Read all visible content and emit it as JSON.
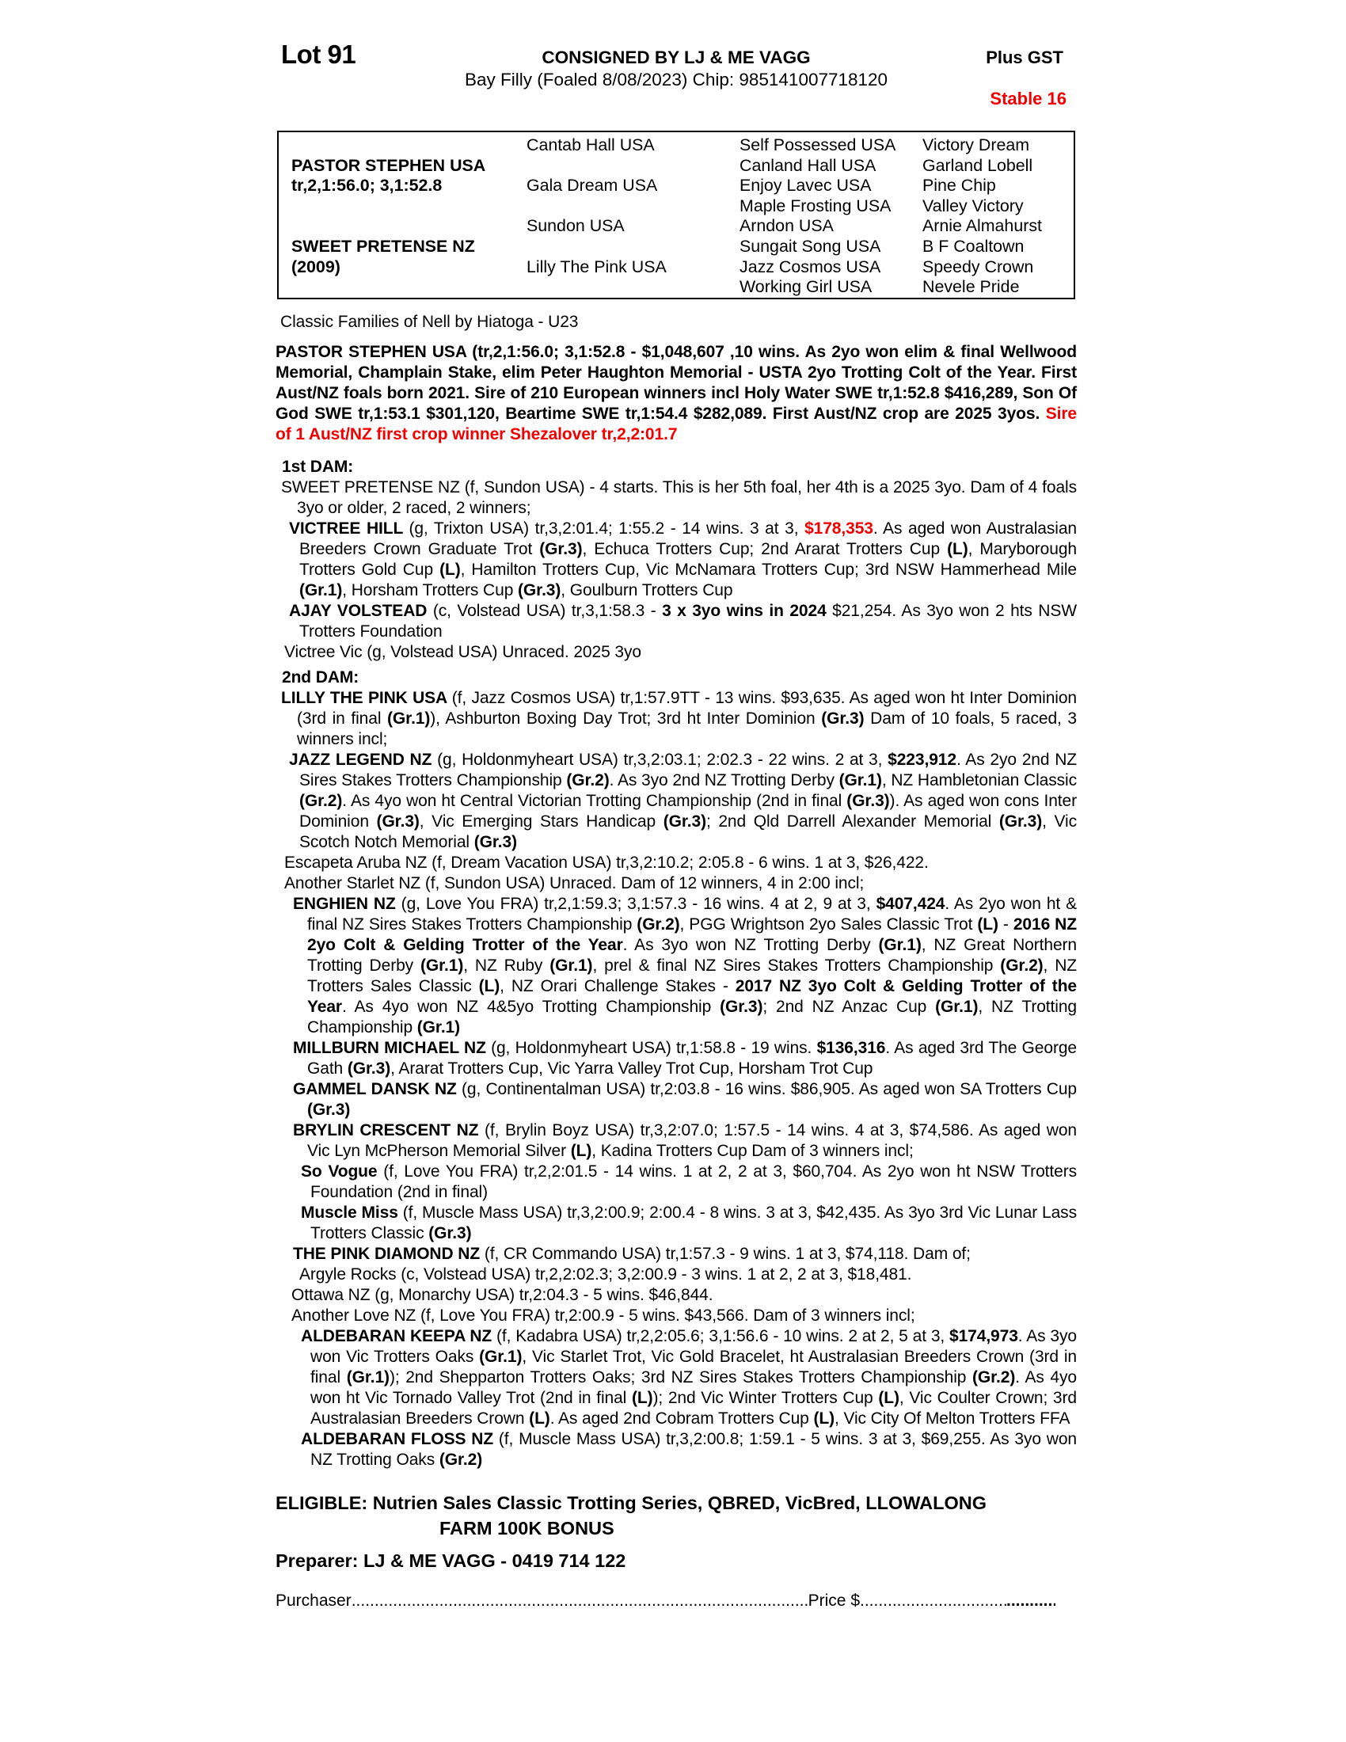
{
  "colors": {
    "accent_red": "#f20000",
    "text": "#000000",
    "page_background": "#ffffff"
  },
  "header": {
    "lot": "Lot 91",
    "consignor": "CONSIGNED BY LJ & ME VAGG",
    "description": "Bay Filly (Foaled 8/08/2023) Chip: 985141007718120",
    "gst": "Plus GST",
    "stable": "Stable 16"
  },
  "pedigree": {
    "sire": {
      "name": "PASTOR STEPHEN USA",
      "record": "tr,2,1:56.0; 3,1:52.8"
    },
    "dam": {
      "name": "SWEET PRETENSE NZ",
      "record": "(2009)"
    },
    "gen2": [
      "Cantab Hall USA",
      "Gala Dream USA",
      "Sundon USA",
      "Lilly The Pink USA"
    ],
    "gen3": [
      "Self Possessed USA",
      "Canland Hall USA",
      "Enjoy Lavec USA",
      "Maple Frosting USA",
      "Arndon USA",
      "Sungait Song USA",
      "Jazz Cosmos USA",
      "Working Girl USA"
    ],
    "gen4": [
      "Victory Dream",
      "Garland Lobell",
      "Pine Chip",
      "Valley Victory",
      "Arnie Almahurst",
      "B F Coaltown",
      "Speedy Crown",
      "Nevele Pride"
    ]
  },
  "body": [
    {
      "name": "family-line",
      "cls": "fam",
      "seg": [
        {
          "t": "Classic Families of Nell by Hiatoga - U23"
        }
      ]
    },
    {
      "name": "sire-summary",
      "cls": "sire",
      "seg": [
        {
          "t": "PASTOR STEPHEN USA (tr,2,1:56.0; 3,1:52.8 - $1,048,607 ,10 wins. As 2yo won elim & final Wellwood Memorial, Champlain Stake, elim Peter Haughton Memorial - USTA 2yo Trotting Colt of the Year. First Aust/NZ foals born 2021. Sire of 210 European winners incl Holy Water SWE tr,1:52.8 $416,289, Son Of God SWE tr,1:53.1 $301,120, Beartime SWE tr,1:54.4 $282,089. First Aust/NZ crop are 2025 3yos. ",
          "s": "b"
        },
        {
          "t": "Sire of 1 Aust/NZ first crop winner Shezalover tr,2,2:01.7",
          "s": "r"
        }
      ]
    },
    {
      "name": "first-dam-heading",
      "cls": "head",
      "seg": [
        {
          "t": "1st DAM:",
          "s": "b"
        }
      ]
    },
    {
      "name": "entry-sweet-pretense",
      "cls": "dam",
      "seg": [
        {
          "t": "SWEET PRETENSE NZ (f, Sundon USA) - 4 starts. This is her 5th foal, her 4th is a 2025 3yo. Dam of 4 foals 3yo or older, 2 raced, 2 winners;"
        }
      ]
    },
    {
      "name": "entry-victree-hill",
      "cls": "c1",
      "seg": [
        {
          "t": "VICTREE HILL ",
          "s": "b"
        },
        {
          "t": "(g, Trixton USA) tr,3,2:01.4; 1:55.2 - 14 wins. 3 at 3, "
        },
        {
          "t": "$178,353",
          "s": "r"
        },
        {
          "t": ". As aged won Australasian Breeders Crown Graduate Trot "
        },
        {
          "t": "(Gr.3)",
          "s": "b"
        },
        {
          "t": ", Echuca Trotters Cup; 2nd Ararat Trotters Cup "
        },
        {
          "t": "(L)",
          "s": "b"
        },
        {
          "t": ", Maryborough Trotters Gold Cup "
        },
        {
          "t": "(L)",
          "s": "b"
        },
        {
          "t": ", Hamilton Trotters Cup, Vic McNamara Trotters Cup; 3rd NSW Hammerhead Mile "
        },
        {
          "t": "(Gr.1)",
          "s": "b"
        },
        {
          "t": ", Horsham Trotters Cup "
        },
        {
          "t": "(Gr.3)",
          "s": "b"
        },
        {
          "t": ", Goulburn Trotters Cup"
        }
      ]
    },
    {
      "name": "entry-ajay-volstead",
      "cls": "c1",
      "seg": [
        {
          "t": "AJAY VOLSTEAD ",
          "s": "b"
        },
        {
          "t": "(c, Volstead USA) tr,3,1:58.3 - "
        },
        {
          "t": "3 x 3yo wins in 2024",
          "s": "b"
        },
        {
          "t": " $21,254. As 3yo won 2 hts NSW Trotters Foundation"
        }
      ]
    },
    {
      "name": "entry-victree-vic",
      "cls": "p1",
      "seg": [
        {
          "t": "Victree Vic (g, Volstead USA) Unraced. 2025 3yo"
        }
      ]
    },
    {
      "name": "second-dam-heading",
      "cls": "head tight",
      "seg": [
        {
          "t": "2nd DAM:",
          "s": "b"
        }
      ]
    },
    {
      "name": "entry-lilly-the-pink",
      "cls": "dam",
      "seg": [
        {
          "t": "LILLY THE PINK USA ",
          "s": "b"
        },
        {
          "t": "(f, Jazz Cosmos USA) tr,1:57.9TT - 13 wins. $93,635. As aged won ht Inter Dominion (3rd in final "
        },
        {
          "t": "(Gr.1)",
          "s": "b"
        },
        {
          "t": "), Ashburton Boxing Day Trot; 3rd ht Inter Dominion "
        },
        {
          "t": "(Gr.3)",
          "s": "b"
        },
        {
          "t": " Dam of 10 foals, 5 raced, 3 winners incl;"
        }
      ]
    },
    {
      "name": "entry-jazz-legend",
      "cls": "c1",
      "seg": [
        {
          "t": "JAZZ LEGEND NZ ",
          "s": "b"
        },
        {
          "t": "(g, Holdonmyheart USA) tr,3,2:03.1; 2:02.3 - 22 wins. 2 at 3, "
        },
        {
          "t": "$223,912",
          "s": "b"
        },
        {
          "t": ". As 2yo 2nd NZ Sires Stakes Trotters Championship "
        },
        {
          "t": "(Gr.2)",
          "s": "b"
        },
        {
          "t": ". As 3yo 2nd NZ Trotting Derby "
        },
        {
          "t": "(Gr.1)",
          "s": "b"
        },
        {
          "t": ", NZ Hambletonian Classic "
        },
        {
          "t": "(Gr.2)",
          "s": "b"
        },
        {
          "t": ". As 4yo won ht Central Victorian Trotting Championship (2nd in final "
        },
        {
          "t": "(Gr.3)",
          "s": "b"
        },
        {
          "t": "). As aged won cons Inter Dominion "
        },
        {
          "t": "(Gr.3)",
          "s": "b"
        },
        {
          "t": ", Vic Emerging Stars Handicap "
        },
        {
          "t": "(Gr.3)",
          "s": "b"
        },
        {
          "t": "; 2nd Qld Darrell Alexander Memorial "
        },
        {
          "t": "(Gr.3)",
          "s": "b"
        },
        {
          "t": ", Vic Scotch Notch Memorial "
        },
        {
          "t": "(Gr.3)",
          "s": "b"
        }
      ]
    },
    {
      "name": "entry-escapeta-aruba",
      "cls": "p1",
      "seg": [
        {
          "t": "Escapeta Aruba NZ (f, Dream Vacation USA) tr,3,2:10.2; 2:05.8 - 6 wins. 1 at 3, $26,422."
        }
      ]
    },
    {
      "name": "entry-another-starlet",
      "cls": "p1",
      "seg": [
        {
          "t": "Another Starlet NZ (f, Sundon USA) Unraced. Dam of 12 winners, 4 in 2:00 incl;"
        }
      ]
    },
    {
      "name": "entry-enghien",
      "cls": "c2",
      "seg": [
        {
          "t": "ENGHIEN NZ ",
          "s": "b"
        },
        {
          "t": "(g, Love You FRA) tr,2,1:59.3; 3,1:57.3 - 16 wins. 4 at 2, 9 at 3, "
        },
        {
          "t": "$407,424",
          "s": "b"
        },
        {
          "t": ". As 2yo won ht & final NZ Sires Stakes Trotters Championship "
        },
        {
          "t": "(Gr.2)",
          "s": "b"
        },
        {
          "t": ", PGG Wrightson 2yo Sales Classic Trot "
        },
        {
          "t": "(L)",
          "s": "b"
        },
        {
          "t": " - "
        },
        {
          "t": "2016 NZ 2yo Colt & Gelding Trotter of the Year",
          "s": "b"
        },
        {
          "t": ". As 3yo won NZ Trotting Derby "
        },
        {
          "t": "(Gr.1)",
          "s": "b"
        },
        {
          "t": ", NZ Great Northern Trotting Derby "
        },
        {
          "t": "(Gr.1)",
          "s": "b"
        },
        {
          "t": ", NZ Ruby "
        },
        {
          "t": "(Gr.1)",
          "s": "b"
        },
        {
          "t": ", prel & final NZ Sires Stakes Trotters Championship "
        },
        {
          "t": "(Gr.2)",
          "s": "b"
        },
        {
          "t": ", NZ Trotters Sales Classic "
        },
        {
          "t": "(L)",
          "s": "b"
        },
        {
          "t": ", NZ Orari Challenge Stakes - "
        },
        {
          "t": "2017 NZ 3yo Colt & Gelding Trotter of the Year",
          "s": "b"
        },
        {
          "t": ". As 4yo won NZ 4&5yo Trotting Championship "
        },
        {
          "t": "(Gr.3)",
          "s": "b"
        },
        {
          "t": "; 2nd NZ Anzac Cup "
        },
        {
          "t": "(Gr.1)",
          "s": "b"
        },
        {
          "t": ", NZ Trotting Championship "
        },
        {
          "t": "(Gr.1)",
          "s": "b"
        }
      ]
    },
    {
      "name": "entry-millburn-michael",
      "cls": "c2",
      "seg": [
        {
          "t": "MILLBURN MICHAEL NZ ",
          "s": "b"
        },
        {
          "t": "(g, Holdonmyheart USA) tr,1:58.8 - 19 wins. "
        },
        {
          "t": "$136,316",
          "s": "b"
        },
        {
          "t": ". As aged 3rd The George Gath "
        },
        {
          "t": "(Gr.3)",
          "s": "b"
        },
        {
          "t": ", Ararat Trotters Cup, Vic Yarra Valley Trot Cup, Horsham Trot Cup"
        }
      ]
    },
    {
      "name": "entry-gammel-dansk",
      "cls": "c2",
      "seg": [
        {
          "t": "GAMMEL DANSK NZ ",
          "s": "b"
        },
        {
          "t": "(g, Continentalman USA) tr,2:03.8 - 16 wins. $86,905. As aged won SA Trotters Cup "
        },
        {
          "t": "(Gr.3)",
          "s": "b"
        }
      ]
    },
    {
      "name": "entry-brylin-crescent",
      "cls": "c2",
      "seg": [
        {
          "t": "BRYLIN CRESCENT NZ ",
          "s": "b"
        },
        {
          "t": "(f, Brylin Boyz USA) tr,3,2:07.0; 1:57.5 - 14 wins. 4 at 3, $74,586. As aged won Vic Lyn McPherson Memorial Silver "
        },
        {
          "t": "(L)",
          "s": "b"
        },
        {
          "t": ", Kadina Trotters Cup Dam of 3 winners incl;"
        }
      ]
    },
    {
      "name": "entry-so-vogue",
      "cls": "c3",
      "seg": [
        {
          "t": "So Vogue ",
          "s": "b"
        },
        {
          "t": "(f, Love You FRA) tr,2,2:01.5 - 14 wins. 1 at 2, 2 at 3, $60,704. As 2yo won ht NSW Trotters Foundation (2nd in final)"
        }
      ]
    },
    {
      "name": "entry-muscle-miss",
      "cls": "c3",
      "seg": [
        {
          "t": "Muscle Miss ",
          "s": "b"
        },
        {
          "t": "(f, Muscle Mass USA) tr,3,2:00.9; 2:00.4 - 8 wins. 3 at 3, $42,435. As 3yo 3rd Vic Lunar Lass Trotters Classic "
        },
        {
          "t": "(Gr.3)",
          "s": "b"
        }
      ]
    },
    {
      "name": "entry-the-pink-diamond",
      "cls": "c2",
      "seg": [
        {
          "t": "THE PINK DIAMOND NZ ",
          "s": "b"
        },
        {
          "t": "(f, CR Commando USA) tr,1:57.3 - 9 wins. 1 at 3, $74,118. Dam of;"
        }
      ]
    },
    {
      "name": "entry-argyle-rocks",
      "cls": "p2",
      "seg": [
        {
          "t": "Argyle Rocks (c, Volstead USA) tr,2,2:02.3; 3,2:00.9 - 3 wins. 1 at 2, 2 at 3, $18,481."
        }
      ]
    },
    {
      "name": "entry-ottawa",
      "cls": "p15",
      "seg": [
        {
          "t": "Ottawa NZ (g, Monarchy USA) tr,2:04.3 - 5 wins. $46,844."
        }
      ]
    },
    {
      "name": "entry-another-love",
      "cls": "p15",
      "seg": [
        {
          "t": "Another Love NZ (f, Love You FRA) tr,2:00.9 - 5 wins. $43,566. Dam of 3 winners incl;"
        }
      ]
    },
    {
      "name": "entry-aldebaran-keepa",
      "cls": "c3",
      "seg": [
        {
          "t": "ALDEBARAN KEEPA NZ ",
          "s": "b"
        },
        {
          "t": "(f, Kadabra USA) tr,2,2:05.6; 3,1:56.6 - 10 wins. 2 at 2, 5 at 3, "
        },
        {
          "t": "$174,973",
          "s": "b"
        },
        {
          "t": ". As 3yo won Vic Trotters Oaks "
        },
        {
          "t": "(Gr.1)",
          "s": "b"
        },
        {
          "t": ", Vic Starlet Trot, Vic Gold Bracelet, ht Australasian Breeders Crown (3rd in final "
        },
        {
          "t": "(Gr.1)",
          "s": "b"
        },
        {
          "t": "); 2nd Shepparton Trotters Oaks; 3rd NZ Sires Stakes Trotters Championship "
        },
        {
          "t": "(Gr.2)",
          "s": "b"
        },
        {
          "t": ". As 4yo won ht Vic Tornado Valley Trot (2nd in final "
        },
        {
          "t": "(L)",
          "s": "b"
        },
        {
          "t": "); 2nd Vic Winter Trotters Cup "
        },
        {
          "t": "(L)",
          "s": "b"
        },
        {
          "t": ", Vic Coulter Crown; 3rd Australasian Breeders Crown "
        },
        {
          "t": "(L)",
          "s": "b"
        },
        {
          "t": ". As aged 2nd Cobram Trotters Cup "
        },
        {
          "t": "(L)",
          "s": "b"
        },
        {
          "t": ", Vic City Of Melton Trotters FFA"
        }
      ]
    },
    {
      "name": "entry-aldebaran-floss",
      "cls": "c3",
      "seg": [
        {
          "t": "ALDEBARAN FLOSS NZ ",
          "s": "b"
        },
        {
          "t": "(f, Muscle Mass USA) tr,3,2:00.8; 1:59.1 - 5 wins. 3 at 3, $69,255. As 3yo won NZ Trotting Oaks "
        },
        {
          "t": "(Gr.2)",
          "s": "b"
        }
      ]
    }
  ],
  "footer": {
    "eligible_line1": "ELIGIBLE: Nutrien Sales Classic Trotting Series, QBRED, VicBred, LLOWALONG",
    "eligible_line2": "FARM 100K BONUS",
    "preparer": "Preparer: LJ & ME VAGG - 0419 714 122",
    "purchaser_label": "Purchaser",
    "price_label": "Price $",
    "leader_dots": "........................................................................................................................................................................",
    "price_dots": "........................................................",
    "price_dots_bold": "................."
  }
}
